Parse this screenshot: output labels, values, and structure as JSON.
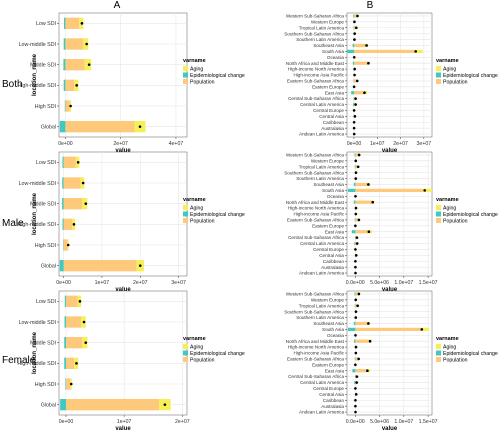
{
  "columns": {
    "left": "A",
    "right": "B"
  },
  "rows": [
    "Both",
    "Male",
    "Female"
  ],
  "axis": {
    "xlabel": "value",
    "ylabel": "location_name"
  },
  "legend": {
    "title": "varname",
    "items": [
      {
        "name": "Aging",
        "color": "#F5F05A"
      },
      {
        "name": "Epidemiological change",
        "color": "#3FC9C0"
      },
      {
        "name": "Population",
        "color": "#FEC97A"
      }
    ]
  },
  "colors": {
    "total_dot": "#000000",
    "panel_bg": "#ffffff",
    "grid": "#e6e6e6"
  },
  "chart_data": [
    {
      "type": "bar",
      "title": "A",
      "row": "Both",
      "stacked": true,
      "categories": [
        "Global",
        "High SDI",
        "High-middle SDI",
        "Middle SDI",
        "Low-middle SDI",
        "Low SDI"
      ],
      "xlim": [
        -2300000,
        44000000
      ],
      "xticks": [
        {
          "v": 0,
          "l": "0e+00"
        },
        {
          "v": 20000000,
          "l": "2e+07"
        },
        {
          "v": 40000000,
          "l": "4e+07"
        }
      ],
      "series": [
        {
          "name": "Aging",
          "values": [
            4000000,
            600000,
            1500000,
            2300000,
            1800000,
            1500000
          ]
        },
        {
          "name": "Epidemiological change",
          "values": [
            -2000000,
            -200000,
            -600000,
            -700000,
            -600000,
            -500000
          ]
        },
        {
          "name": "Population",
          "values": [
            25000000,
            1500000,
            3200000,
            7000000,
            6500000,
            5000000
          ]
        }
      ],
      "total": [
        27000000,
        1900000,
        4100000,
        8600000,
        7700000,
        6000000
      ]
    },
    {
      "type": "bar",
      "title": "B",
      "row": "Both",
      "stacked": true,
      "categories": [
        "Andean Latin America",
        "Australasia",
        "Caribbean",
        "Central Asia",
        "Central Europe",
        "Central Latin America",
        "Central Sub-Saharan Africa",
        "East Asia",
        "Eastern Europe",
        "Eastern Sub-Saharan Africa",
        "High-income Asia Pacific",
        "High-income North America",
        "North Africa and Middle East",
        "Oceania",
        "South Asia",
        "Southeast Asia",
        "Southern Latin America",
        "Southern Sub-Saharan Africa",
        "Tropical Latin America",
        "Western Europe",
        "Western Sub-Saharan Africa"
      ],
      "xlim": [
        -3000000,
        33500000
      ],
      "xticks": [
        {
          "v": 0,
          "l": "0e+00"
        },
        {
          "v": 10000000,
          "l": "1e+07"
        },
        {
          "v": 20000000,
          "l": "2e+07"
        },
        {
          "v": 30000000,
          "l": "3e+07"
        }
      ],
      "series": [
        {
          "name": "Aging",
          "values": [
            0,
            0,
            0,
            100000,
            50000,
            200000,
            100000,
            1200000,
            0,
            300000,
            100000,
            100000,
            700000,
            0,
            3500000,
            1000000,
            0,
            100000,
            300000,
            100000,
            300000
          ]
        },
        {
          "name": "Epidemiological change",
          "values": [
            0,
            0,
            0,
            -100000,
            -100000,
            -400000,
            -100000,
            -1200000,
            -50000,
            -200000,
            -50000,
            -100000,
            -500000,
            0,
            -3000000,
            -600000,
            0,
            -100000,
            -200000,
            -100000,
            -300000
          ]
        },
        {
          "name": "Population",
          "values": [
            100000,
            50000,
            50000,
            400000,
            100000,
            900000,
            700000,
            4500000,
            100000,
            1300000,
            200000,
            300000,
            6000000,
            100000,
            26000000,
            5000000,
            200000,
            300000,
            900000,
            200000,
            1500000
          ]
        }
      ],
      "total": [
        100000,
        50000,
        50000,
        400000,
        50000,
        700000,
        700000,
        4500000,
        50000,
        1400000,
        250000,
        300000,
        6200000,
        100000,
        26500000,
        5400000,
        200000,
        300000,
        1000000,
        200000,
        1500000
      ]
    },
    {
      "type": "bar",
      "title": "",
      "row": "Male",
      "stacked": true,
      "categories": [
        "Global",
        "High SDI",
        "High-middle SDI",
        "Middle SDI",
        "Low-middle SDI",
        "Low SDI"
      ],
      "xlim": [
        -1200000,
        32200000
      ],
      "xticks": [
        {
          "v": 0,
          "l": "0e+00"
        },
        {
          "v": 10000000,
          "l": "1e+07"
        },
        {
          "v": 20000000,
          "l": "2e+07"
        },
        {
          "v": 30000000,
          "l": "3e+07"
        }
      ],
      "series": [
        {
          "name": "Aging",
          "values": [
            2000000,
            300000,
            800000,
            1400000,
            1000000,
            900000
          ]
        },
        {
          "name": "Epidemiological change",
          "values": [
            -1000000,
            -100000,
            -300000,
            -400000,
            -350000,
            -300000
          ]
        },
        {
          "name": "Population",
          "values": [
            19000000,
            1000000,
            2200000,
            4800000,
            4400000,
            3200000
          ]
        }
      ],
      "total": [
        20000000,
        1200000,
        2700000,
        5800000,
        5100000,
        3800000
      ]
    },
    {
      "type": "bar",
      "title": "",
      "row": "Male",
      "stacked": true,
      "categories": [
        "Andean Latin America",
        "Australasia",
        "Caribbean",
        "Central Asia",
        "Central Europe",
        "Central Latin America",
        "Central Sub-Saharan Africa",
        "East Asia",
        "Eastern Europe",
        "Eastern Sub-Saharan Africa",
        "High-income Asia Pacific",
        "High-income North America",
        "North Africa and Middle East",
        "Oceania",
        "South Asia",
        "Southeast Asia",
        "Southern Latin America",
        "Southern Sub-Saharan Africa",
        "Tropical Latin America",
        "Western Europe",
        "Western Sub-Saharan Africa"
      ],
      "xlim": [
        -1700000,
        15800000
      ],
      "xticks": [
        {
          "v": 0,
          "l": "0.0e+00"
        },
        {
          "v": 5000000,
          "l": "5.0e+06"
        },
        {
          "v": 10000000,
          "l": "1.0e+07"
        },
        {
          "v": 15000000,
          "l": "1.5e+07"
        }
      ],
      "series": [
        {
          "name": "Aging",
          "values": [
            0,
            0,
            0,
            50000,
            30000,
            100000,
            50000,
            700000,
            0,
            150000,
            50000,
            50000,
            400000,
            0,
            1800000,
            500000,
            0,
            50000,
            200000,
            50000,
            150000
          ]
        },
        {
          "name": "Epidemiological change",
          "values": [
            0,
            0,
            0,
            -50000,
            -50000,
            -200000,
            -50000,
            -700000,
            -30000,
            -100000,
            -30000,
            -50000,
            -300000,
            0,
            -1500000,
            -300000,
            0,
            -50000,
            -100000,
            -50000,
            -150000
          ]
        },
        {
          "name": "Population",
          "values": [
            50000,
            30000,
            30000,
            200000,
            50000,
            500000,
            350000,
            2800000,
            50000,
            700000,
            100000,
            150000,
            3500000,
            50000,
            14000000,
            2500000,
            100000,
            150000,
            500000,
            100000,
            800000
          ]
        }
      ],
      "total": [
        50000,
        30000,
        30000,
        200000,
        30000,
        400000,
        350000,
        2800000,
        20000,
        750000,
        120000,
        150000,
        3600000,
        50000,
        14300000,
        2700000,
        100000,
        150000,
        600000,
        100000,
        800000
      ]
    },
    {
      "type": "bar",
      "title": "",
      "row": "Female",
      "stacked": true,
      "categories": [
        "Global",
        "High SDI",
        "High-middle SDI",
        "Middle SDI",
        "Low-middle SDI",
        "Low SDI"
      ],
      "xlim": [
        -1200000,
        20800000
      ],
      "xticks": [
        {
          "v": 0,
          "l": "0e+00"
        },
        {
          "v": 10000000,
          "l": "1e+07"
        },
        {
          "v": 20000000,
          "l": "2e+07"
        }
      ],
      "series": [
        {
          "name": "Aging",
          "values": [
            2000000,
            300000,
            700000,
            900000,
            800000,
            600000
          ]
        },
        {
          "name": "Epidemiological change",
          "values": [
            -1000000,
            -100000,
            -300000,
            -300000,
            -250000,
            -200000
          ]
        },
        {
          "name": "Population",
          "values": [
            16000000,
            700000,
            1400000,
            2800000,
            2600000,
            2000000
          ]
        }
      ],
      "total": [
        17000000,
        900000,
        1800000,
        3400000,
        3100000,
        2400000
      ]
    },
    {
      "type": "bar",
      "title": "",
      "row": "Female",
      "stacked": true,
      "categories": [
        "Andean Latin America",
        "Australasia",
        "Caribbean",
        "Central Asia",
        "Central Europe",
        "Central Latin America",
        "Central Sub-Saharan Africa",
        "East Asia",
        "Eastern Europe",
        "Eastern Sub-Saharan Africa",
        "High-income Asia Pacific",
        "High-income North America",
        "North Africa and Middle East",
        "Oceania",
        "South Asia",
        "Southeast Asia",
        "Southern Latin America",
        "Southern Sub-Saharan Africa",
        "Tropical Latin America",
        "Western Europe",
        "Western Sub-Saharan Africa"
      ],
      "xlim": [
        -1700000,
        15800000
      ],
      "xticks": [
        {
          "v": 0,
          "l": "0.0e+00"
        },
        {
          "v": 5000000,
          "l": "5.0e+06"
        },
        {
          "v": 10000000,
          "l": "1.0e+07"
        },
        {
          "v": 15000000,
          "l": "1.5e+07"
        }
      ],
      "series": [
        {
          "name": "Aging",
          "values": [
            0,
            0,
            0,
            50000,
            30000,
            100000,
            50000,
            600000,
            0,
            150000,
            50000,
            50000,
            300000,
            0,
            1700000,
            500000,
            0,
            50000,
            150000,
            50000,
            150000
          ]
        },
        {
          "name": "Epidemiological change",
          "values": [
            0,
            0,
            0,
            -50000,
            -50000,
            -200000,
            -50000,
            -600000,
            -30000,
            -100000,
            -30000,
            -50000,
            -250000,
            0,
            -1500000,
            -300000,
            0,
            -50000,
            -100000,
            -50000,
            -150000
          ]
        },
        {
          "name": "Population",
          "values": [
            50000,
            30000,
            30000,
            200000,
            50000,
            400000,
            350000,
            2500000,
            50000,
            650000,
            100000,
            150000,
            3000000,
            50000,
            13500000,
            2500000,
            100000,
            150000,
            450000,
            100000,
            750000
          ]
        }
      ],
      "total": [
        50000,
        30000,
        30000,
        200000,
        30000,
        300000,
        350000,
        2500000,
        20000,
        700000,
        120000,
        150000,
        3050000,
        50000,
        13700000,
        2700000,
        100000,
        150000,
        500000,
        100000,
        750000
      ]
    }
  ]
}
